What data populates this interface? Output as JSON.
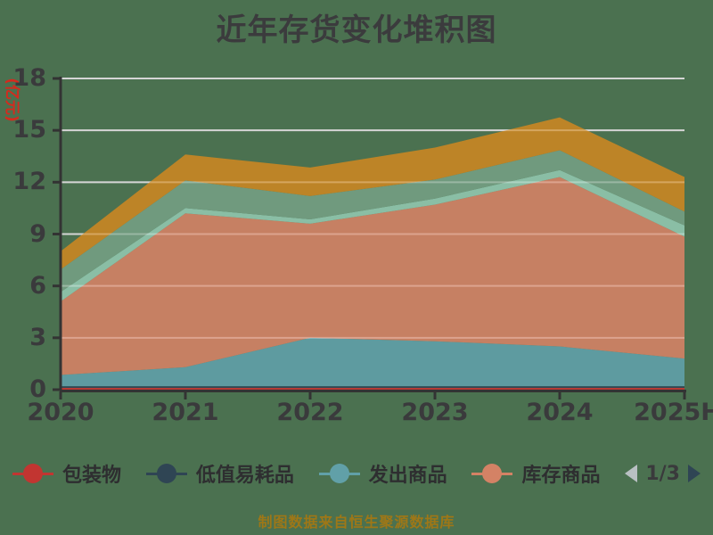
{
  "title": "近年存货变化堆积图",
  "y_axis": {
    "name": "(亿元)",
    "ticks": [
      0,
      3,
      6,
      9,
      12,
      15,
      18
    ],
    "max": 18
  },
  "x_axis": {
    "labels": [
      "2020",
      "2021",
      "2022",
      "2023",
      "2024",
      "2025H"
    ]
  },
  "legend": {
    "items": [
      {
        "label": "包装物",
        "color": "#c23531"
      },
      {
        "label": "低值易耗品",
        "color": "#2f4554"
      },
      {
        "label": "发出商品",
        "color": "#61a0a8"
      },
      {
        "label": "库存商品",
        "color": "#d48265"
      }
    ],
    "page": "1/3"
  },
  "footer": "制图数据来自恒生聚源数据库",
  "chart_data": {
    "type": "area",
    "stacked": true,
    "x": [
      "2020",
      "2021",
      "2022",
      "2023",
      "2024",
      "2025H"
    ],
    "ylabel": "(亿元)",
    "ylim": [
      0,
      18
    ],
    "grid": true,
    "legend_position": "bottom",
    "series": [
      {
        "name": "包装物",
        "color": "#c23531",
        "values": [
          0.1,
          0.1,
          0.1,
          0.1,
          0.1,
          0.1
        ]
      },
      {
        "name": "低值易耗品",
        "color": "#2f4554",
        "values": [
          0.1,
          0.1,
          0.1,
          0.1,
          0.1,
          0.1
        ]
      },
      {
        "name": "发出商品",
        "color": "#61a0a8",
        "values": [
          0.65,
          1.1,
          2.8,
          2.6,
          2.3,
          1.6
        ]
      },
      {
        "name": "库存商品",
        "color": "#d48265",
        "values": [
          4.25,
          8.9,
          6.6,
          7.9,
          9.8,
          7.05
        ]
      },
      {
        "name": "",
        "color": "#91c7ae",
        "values": [
          0.55,
          0.3,
          0.25,
          0.35,
          0.4,
          0.65
        ]
      },
      {
        "name": "",
        "color": "#749f83",
        "values": [
          1.3,
          1.6,
          1.35,
          1.1,
          1.15,
          0.8
        ]
      },
      {
        "name": "",
        "color": "#ca8622",
        "values": [
          1.05,
          1.5,
          1.65,
          1.85,
          1.9,
          2.0
        ]
      }
    ]
  },
  "colors": {
    "background": "#4b7150",
    "grid": "#c9c9c9",
    "axis": "#333333",
    "title_text": "#3b3b3d",
    "axis_text": "#3a3a3c",
    "y_name_text": "#d42a1e",
    "footer_text": "#9e7717",
    "pager_prev": "#b9c0c3",
    "pager_next": "#2f4554"
  }
}
